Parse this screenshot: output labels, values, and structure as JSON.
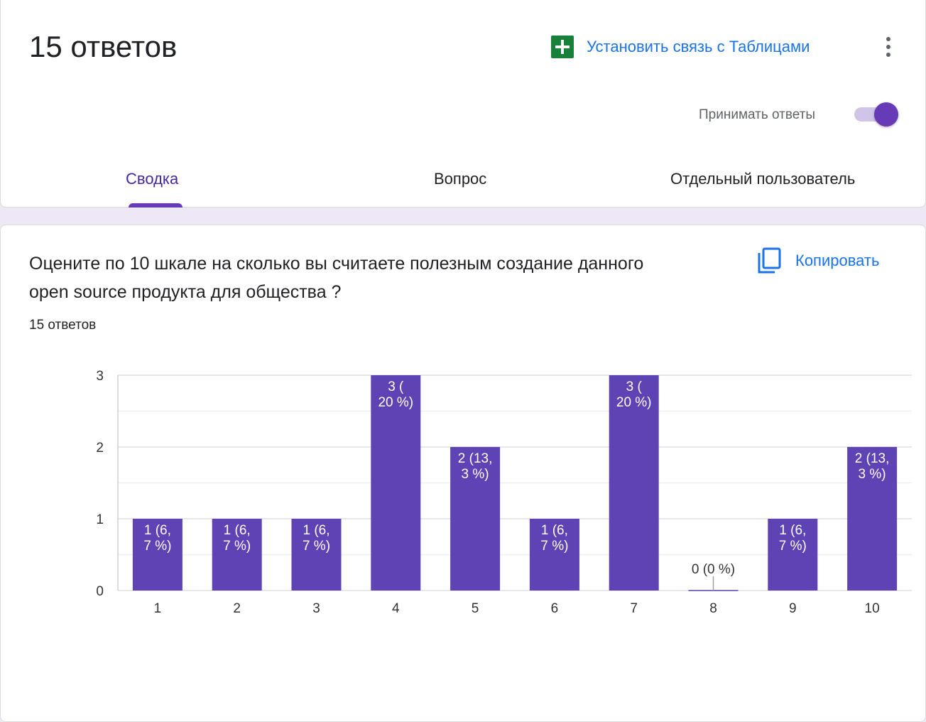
{
  "header": {
    "title": "15 ответов",
    "link_sheets_label": "Установить связь с Таблицами",
    "accept_responses_label": "Принимать ответы",
    "accept_responses_on": true
  },
  "tabs": [
    {
      "label": "Сводка",
      "active": true
    },
    {
      "label": "Вопрос",
      "active": false
    },
    {
      "label": "Отдельный пользователь",
      "active": false
    }
  ],
  "question": {
    "title_line1": "Оцените по 10 шкале на сколько вы считаете полезным создание данного",
    "title_line2": "open source продукта для общества ?",
    "response_count": "15 ответов",
    "copy_label": "Копировать"
  },
  "icons": {
    "sheets": "google-sheets-icon",
    "more": "more-vert-icon",
    "copy": "copy-icon"
  },
  "colors": {
    "accent": "#673ab7",
    "bar": "#5e43b5",
    "link": "#1a73e8",
    "sheets_green": "#188038"
  },
  "chart_data": {
    "type": "bar",
    "categories": [
      "1",
      "2",
      "3",
      "4",
      "5",
      "6",
      "7",
      "8",
      "9",
      "10"
    ],
    "values": [
      1,
      1,
      1,
      3,
      2,
      1,
      3,
      0,
      1,
      2
    ],
    "data_labels": [
      [
        "1 (6,",
        "7 %)"
      ],
      [
        "1 (6,",
        "7 %)"
      ],
      [
        "1 (6,",
        "7 %)"
      ],
      [
        "3 (",
        "20 %)"
      ],
      [
        "2 (13,",
        "3 %)"
      ],
      [
        "1 (6,",
        "7 %)"
      ],
      [
        "3 (",
        "20 %)"
      ],
      [
        "0 (0 %)"
      ],
      [
        "1 (6,",
        "7 %)"
      ],
      [
        "2 (13,",
        "3 %)"
      ]
    ],
    "yticks": [
      0,
      1,
      2,
      3
    ],
    "ylim": [
      0,
      3
    ],
    "grid": true,
    "title": "",
    "xlabel": "",
    "ylabel": ""
  }
}
